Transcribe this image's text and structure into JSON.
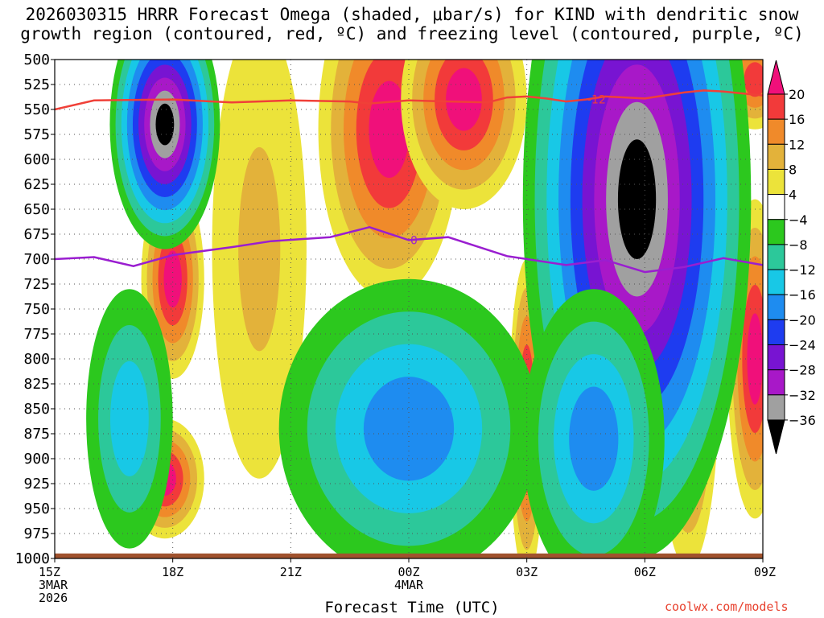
{
  "figure": {
    "title_line1": "2026030315 HRRR Forecast Omega (shaded, μbar/s) for KIND with dendritic snow",
    "title_line2": "growth region (contoured, red, ºC) and freezing level (contoured, purple, ºC)",
    "credit": "coolwx.com/models"
  },
  "chart_data": {
    "type": "heatmap",
    "title": "2026030315 HRRR Forecast Omega (shaded, μbar/s) for KIND with dendritic snow growth region (contoured, red, ºC) and freezing level (contoured, purple, ºC)",
    "xlabel": "Forecast Time (UTC)",
    "ylabel": "",
    "x_hours": [
      0,
      18
    ],
    "x_ticks": [
      {
        "hour": 0,
        "lines": [
          "15Z",
          "3MAR",
          "2026"
        ]
      },
      {
        "hour": 3,
        "lines": [
          "18Z"
        ]
      },
      {
        "hour": 6,
        "lines": [
          "21Z"
        ]
      },
      {
        "hour": 9,
        "lines": [
          "00Z",
          "4MAR"
        ]
      },
      {
        "hour": 12,
        "lines": [
          "03Z"
        ]
      },
      {
        "hour": 15,
        "lines": [
          "06Z"
        ]
      },
      {
        "hour": 18,
        "lines": [
          "09Z"
        ]
      }
    ],
    "y_range_mb": [
      500,
      1000
    ],
    "y_ticks": [
      500,
      525,
      550,
      575,
      600,
      625,
      650,
      675,
      700,
      725,
      750,
      775,
      800,
      825,
      850,
      875,
      900,
      925,
      950,
      975,
      1000
    ],
    "grid": true,
    "colorbar": {
      "labels": [
        "20",
        "16",
        "12",
        "8",
        "4",
        "−4",
        "−8",
        "−12",
        "−16",
        "−20",
        "−24",
        "−28",
        "−32",
        "−36"
      ],
      "levels": [
        20,
        16,
        12,
        8,
        4,
        -4,
        -8,
        -12,
        -16,
        -20,
        -24,
        -28,
        -32,
        -36
      ],
      "colors": [
        "#f0107a",
        "#f23a3a",
        "#f08a2a",
        "#e3b23a",
        "#ece33a",
        "#ffffff",
        "#2cc81e",
        "#2cc89a",
        "#18c8e6",
        "#1e8cf0",
        "#1e3cf0",
        "#7814d2",
        "#a818c8",
        "#a0a0a0",
        "#000000"
      ]
    },
    "contours": [
      {
        "name": "dendritic growth region",
        "color": "#f04038",
        "value_label": "-12",
        "points": [
          [
            0,
            550
          ],
          [
            1,
            541
          ],
          [
            3,
            540
          ],
          [
            4.5,
            543
          ],
          [
            6,
            541
          ],
          [
            7.5,
            542
          ],
          [
            8,
            544
          ],
          [
            9,
            541
          ],
          [
            10,
            542
          ],
          [
            11,
            543
          ],
          [
            11.5,
            538
          ],
          [
            12,
            537
          ],
          [
            12.5,
            539
          ],
          [
            13,
            542
          ],
          [
            13.5,
            540
          ],
          [
            14,
            537
          ],
          [
            15,
            539
          ],
          [
            16,
            533
          ],
          [
            16.5,
            531
          ],
          [
            17,
            532
          ],
          [
            18,
            536
          ]
        ]
      },
      {
        "name": "freezing level",
        "color": "#9a1ed0",
        "value_label": "0",
        "points": [
          [
            0,
            700
          ],
          [
            1,
            698
          ],
          [
            2,
            707
          ],
          [
            3,
            696
          ],
          [
            4.5,
            688
          ],
          [
            5.5,
            682
          ],
          [
            7,
            678
          ],
          [
            8,
            668
          ],
          [
            9,
            681
          ],
          [
            10,
            678
          ],
          [
            11.5,
            697
          ],
          [
            13,
            706
          ],
          [
            14,
            701
          ],
          [
            15,
            713
          ],
          [
            16,
            708
          ],
          [
            17,
            699
          ],
          [
            18,
            706
          ]
        ]
      }
    ],
    "omega_regions": [
      {
        "level": 20,
        "label": "strong ascent > 20",
        "center_hour": 9,
        "center_mb": 600
      },
      {
        "level": -36,
        "label": "strong descent < -36",
        "center_hour": 15,
        "center_mb": 650
      },
      {
        "level": -36,
        "label": "descent core",
        "center_hour": 3,
        "center_mb": 560
      }
    ],
    "ground": {
      "mb": 995,
      "color": "#a0522d"
    }
  }
}
